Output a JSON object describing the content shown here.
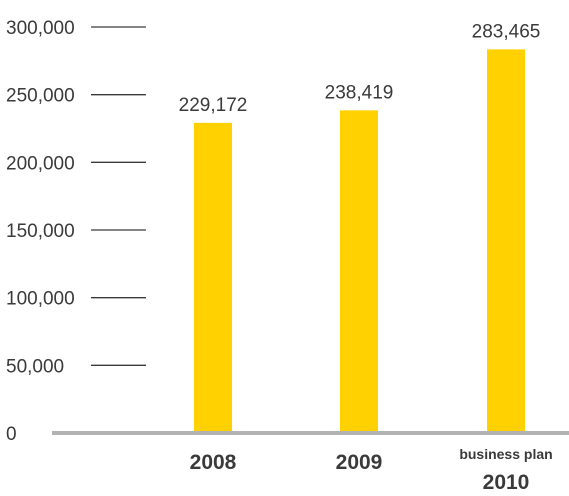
{
  "chart_data": {
    "type": "bar",
    "categories": [
      "2008",
      "2009",
      "business plan 2010"
    ],
    "category_lines": [
      [
        "2008"
      ],
      [
        "2009"
      ],
      [
        "business plan",
        "2010"
      ]
    ],
    "values": [
      229172,
      238419,
      283465
    ],
    "value_labels": [
      "229,172",
      "238,419",
      "283,465"
    ],
    "yticks": [
      0,
      50000,
      100000,
      150000,
      200000,
      250000,
      300000
    ],
    "ytick_labels": [
      "0",
      "50,000",
      "100,000",
      "150,000",
      "200,000",
      "250,000",
      "300,000"
    ],
    "ylim": [
      0,
      300000
    ],
    "title": "",
    "xlabel": "",
    "ylabel": "",
    "grid": false,
    "colors": {
      "bar": "#FFD100",
      "axis": "#b3b3b3",
      "tick": "#3a3a3a",
      "text": "#3a3a3a"
    }
  }
}
